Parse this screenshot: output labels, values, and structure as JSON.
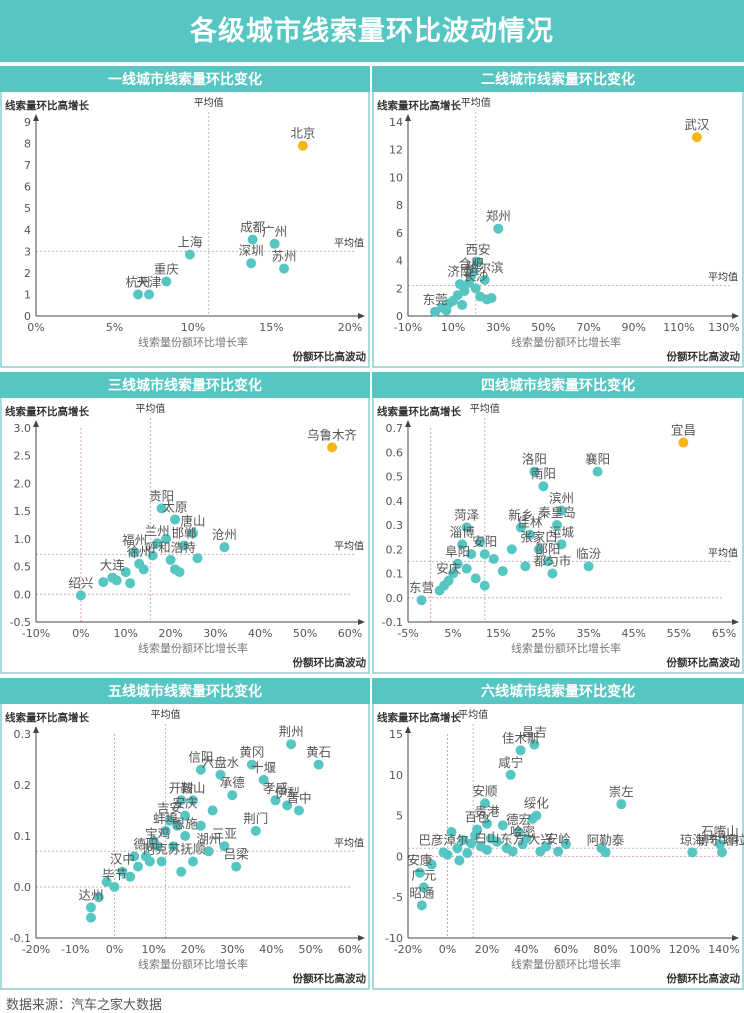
{
  "title": "各级城市线索量环比波动情况",
  "footer": "数据来源：汽车之家大数据",
  "colors": {
    "header": "#56c6c3",
    "point": "#56c6c3",
    "highlight": "#f5b51b",
    "frame": "#8ccfcd"
  },
  "chart_data": [
    {
      "type": "scatter",
      "title": "一线城市线索量环比变化",
      "ylabel": "线索量环比高增长",
      "xlabel": "线索量份额环比增长率",
      "corner_label": "份额环比高波动",
      "avg_label": "平均值",
      "x_format": "percent",
      "xlim": [
        0,
        0.2
      ],
      "xticks": [
        0,
        0.05,
        0.1,
        0.15,
        0.2
      ],
      "ylim": [
        0,
        9
      ],
      "yticks": [
        0,
        1,
        2,
        3,
        4,
        5,
        6,
        7,
        8,
        9
      ],
      "avg_x": 0.11,
      "avg_y": 3.0,
      "zero_lines": false,
      "points": [
        {
          "x": 0.17,
          "y": 7.9,
          "label": "北京",
          "highlight": true
        },
        {
          "x": 0.098,
          "y": 2.85,
          "label": "上海"
        },
        {
          "x": 0.138,
          "y": 3.55,
          "label": "成都"
        },
        {
          "x": 0.152,
          "y": 3.35,
          "label": "广州"
        },
        {
          "x": 0.137,
          "y": 2.45,
          "label": "深圳"
        },
        {
          "x": 0.158,
          "y": 2.2,
          "label": "苏州"
        },
        {
          "x": 0.083,
          "y": 1.6,
          "label": "重庆"
        },
        {
          "x": 0.065,
          "y": 1.0,
          "label": "杭州"
        },
        {
          "x": 0.072,
          "y": 1.0,
          "label": "天津"
        }
      ]
    },
    {
      "type": "scatter",
      "title": "二线城市线索量环比变化",
      "ylabel": "线索量环比高增长",
      "xlabel": "线索量份额环比增长率",
      "corner_label": "份额环比高波动",
      "avg_label": "平均值",
      "x_format": "percent",
      "xlim": [
        -0.1,
        1.3
      ],
      "xticks": [
        -0.1,
        0.1,
        0.3,
        0.5,
        0.7,
        0.9,
        1.1,
        1.3
      ],
      "ylim": [
        0,
        14
      ],
      "yticks": [
        0,
        2,
        4,
        6,
        8,
        10,
        12,
        14
      ],
      "avg_x": 0.2,
      "avg_y": 2.2,
      "zero_lines": false,
      "points": [
        {
          "x": 1.18,
          "y": 12.9,
          "label": "武汉",
          "highlight": true
        },
        {
          "x": 0.3,
          "y": 6.3,
          "label": "郑州"
        },
        {
          "x": 0.21,
          "y": 3.9,
          "label": "西安"
        },
        {
          "x": 0.18,
          "y": 2.9,
          "label": "合肥"
        },
        {
          "x": 0.24,
          "y": 2.6,
          "label": "哈尔滨"
        },
        {
          "x": 0.13,
          "y": 2.3,
          "label": "济南"
        },
        {
          "x": 0.2,
          "y": 2.0,
          "label": "长沙"
        },
        {
          "x": 0.02,
          "y": 0.3,
          "label": "东莞"
        },
        {
          "x": 0.05,
          "y": 0.6
        },
        {
          "x": 0.08,
          "y": 0.9
        },
        {
          "x": 0.1,
          "y": 1.1
        },
        {
          "x": 0.12,
          "y": 1.5
        },
        {
          "x": 0.15,
          "y": 1.8
        },
        {
          "x": 0.17,
          "y": 2.4
        },
        {
          "x": 0.19,
          "y": 3.2
        },
        {
          "x": 0.22,
          "y": 1.4
        },
        {
          "x": 0.25,
          "y": 1.2
        },
        {
          "x": 0.27,
          "y": 1.3
        },
        {
          "x": 0.14,
          "y": 0.8
        },
        {
          "x": 0.07,
          "y": 0.4
        }
      ]
    },
    {
      "type": "scatter",
      "title": "三线城市线索量环比变化",
      "ylabel": "线索量环比高增长",
      "xlabel": "线索量份额环比增长率",
      "corner_label": "份额环比高波动",
      "avg_label": "平均值",
      "x_format": "percent",
      "xlim": [
        -0.1,
        0.6
      ],
      "xticks": [
        -0.1,
        0,
        0.1,
        0.2,
        0.3,
        0.4,
        0.5,
        0.6
      ],
      "ylim": [
        -0.5,
        3.0
      ],
      "yticks": [
        -0.5,
        0,
        0.5,
        1.0,
        1.5,
        2.0,
        2.5,
        3.0
      ],
      "avg_x": 0.155,
      "avg_y": 0.72,
      "zero_lines": true,
      "points": [
        {
          "x": 0.56,
          "y": 2.65,
          "label": "乌鲁木齐",
          "highlight": true
        },
        {
          "x": 0.18,
          "y": 1.55,
          "label": "贵阳"
        },
        {
          "x": 0.21,
          "y": 1.35,
          "label": "太原"
        },
        {
          "x": 0.25,
          "y": 1.1,
          "label": "唐山"
        },
        {
          "x": 0.32,
          "y": 0.85,
          "label": "沧州"
        },
        {
          "x": 0.17,
          "y": 0.92,
          "label": "兰州"
        },
        {
          "x": 0.23,
          "y": 0.88,
          "label": "邯郸"
        },
        {
          "x": 0.12,
          "y": 0.75,
          "label": "福州"
        },
        {
          "x": 0.13,
          "y": 0.55,
          "label": "徐州"
        },
        {
          "x": 0.2,
          "y": 0.62,
          "label": "呼和浩特"
        },
        {
          "x": 0.07,
          "y": 0.3,
          "label": "大连"
        },
        {
          "x": 0.0,
          "y": -0.02,
          "label": "绍兴"
        },
        {
          "x": 0.05,
          "y": 0.22
        },
        {
          "x": 0.08,
          "y": 0.25
        },
        {
          "x": 0.1,
          "y": 0.4
        },
        {
          "x": 0.14,
          "y": 0.45
        },
        {
          "x": 0.16,
          "y": 0.7
        },
        {
          "x": 0.19,
          "y": 1.0
        },
        {
          "x": 0.21,
          "y": 0.45
        },
        {
          "x": 0.26,
          "y": 0.65
        },
        {
          "x": 0.22,
          "y": 0.4
        },
        {
          "x": 0.11,
          "y": 0.2
        }
      ]
    },
    {
      "type": "scatter",
      "title": "四线城市线索量环比变化",
      "ylabel": "线索量环比高增长",
      "xlabel": "线索量份额环比增长率",
      "corner_label": "份额环比高波动",
      "avg_label": "平均值",
      "x_format": "percent",
      "xlim": [
        -0.05,
        0.65
      ],
      "xticks": [
        -0.05,
        0.05,
        0.15,
        0.25,
        0.35,
        0.45,
        0.55,
        0.65
      ],
      "ylim": [
        -0.1,
        0.7
      ],
      "yticks": [
        -0.1,
        0,
        0.1,
        0.2,
        0.3,
        0.4,
        0.5,
        0.6,
        0.7
      ],
      "avg_x": 0.12,
      "avg_y": 0.15,
      "zero_lines": true,
      "points": [
        {
          "x": 0.56,
          "y": 0.64,
          "label": "宜昌",
          "highlight": true
        },
        {
          "x": 0.23,
          "y": 0.52,
          "label": "洛阳"
        },
        {
          "x": 0.37,
          "y": 0.52,
          "label": "襄阳"
        },
        {
          "x": 0.25,
          "y": 0.46,
          "label": "南阳"
        },
        {
          "x": 0.29,
          "y": 0.36,
          "label": "滨州"
        },
        {
          "x": 0.28,
          "y": 0.3,
          "label": "秦皇岛"
        },
        {
          "x": 0.2,
          "y": 0.29,
          "label": "新乡"
        },
        {
          "x": 0.08,
          "y": 0.29,
          "label": "菏泽"
        },
        {
          "x": 0.22,
          "y": 0.26,
          "label": "佳林"
        },
        {
          "x": 0.07,
          "y": 0.22,
          "label": "淄博"
        },
        {
          "x": 0.29,
          "y": 0.22,
          "label": "运城"
        },
        {
          "x": 0.24,
          "y": 0.2,
          "label": "张家口"
        },
        {
          "x": 0.12,
          "y": 0.18,
          "label": "安阳"
        },
        {
          "x": 0.35,
          "y": 0.13,
          "label": "临汾"
        },
        {
          "x": 0.26,
          "y": 0.15,
          "label": "邵阳"
        },
        {
          "x": 0.27,
          "y": 0.1,
          "label": "都匀市"
        },
        {
          "x": 0.06,
          "y": 0.14,
          "label": "阜阳"
        },
        {
          "x": 0.04,
          "y": 0.07,
          "label": "安庆"
        },
        {
          "x": -0.02,
          "y": -0.01,
          "label": "东营"
        },
        {
          "x": 0.02,
          "y": 0.03
        },
        {
          "x": 0.03,
          "y": 0.05
        },
        {
          "x": 0.05,
          "y": 0.1
        },
        {
          "x": 0.08,
          "y": 0.12
        },
        {
          "x": 0.1,
          "y": 0.08
        },
        {
          "x": 0.14,
          "y": 0.16
        },
        {
          "x": 0.18,
          "y": 0.2
        },
        {
          "x": 0.21,
          "y": 0.13
        },
        {
          "x": 0.09,
          "y": 0.18
        },
        {
          "x": 0.11,
          "y": 0.23
        },
        {
          "x": 0.16,
          "y": 0.11
        },
        {
          "x": 0.12,
          "y": 0.05
        }
      ]
    },
    {
      "type": "scatter",
      "title": "五线城市线索量环比变化",
      "ylabel": "线索量环比高增长",
      "xlabel": "线索量份额环比增长率",
      "corner_label": "份额环比高波动",
      "avg_label": "平均值",
      "x_format": "percent",
      "xlim": [
        -0.2,
        0.6
      ],
      "xticks": [
        -0.2,
        -0.1,
        0,
        0.1,
        0.2,
        0.3,
        0.4,
        0.5,
        0.6
      ],
      "ylim": [
        -0.1,
        0.3
      ],
      "yticks": [
        -0.1,
        0,
        0.1,
        0.2,
        0.3
      ],
      "avg_x": 0.13,
      "avg_y": 0.07,
      "zero_lines": true,
      "points": [
        {
          "x": 0.45,
          "y": 0.28,
          "label": "荆州"
        },
        {
          "x": 0.52,
          "y": 0.24,
          "label": "黄石"
        },
        {
          "x": 0.35,
          "y": 0.24,
          "label": "黄冈"
        },
        {
          "x": 0.22,
          "y": 0.23,
          "label": "信阳"
        },
        {
          "x": 0.38,
          "y": 0.21,
          "label": "十堰"
        },
        {
          "x": 0.27,
          "y": 0.22,
          "label": "六盘水"
        },
        {
          "x": 0.3,
          "y": 0.18,
          "label": "承德"
        },
        {
          "x": 0.41,
          "y": 0.17,
          "label": "孝感"
        },
        {
          "x": 0.44,
          "y": 0.16,
          "label": "伊犁"
        },
        {
          "x": 0.47,
          "y": 0.15,
          "label": "晋中"
        },
        {
          "x": 0.2,
          "y": 0.17,
          "label": "鞍山"
        },
        {
          "x": 0.17,
          "y": 0.17,
          "label": "开封"
        },
        {
          "x": 0.18,
          "y": 0.14,
          "label": "安庆"
        },
        {
          "x": 0.14,
          "y": 0.13,
          "label": "吉安"
        },
        {
          "x": 0.36,
          "y": 0.11,
          "label": "荆门"
        },
        {
          "x": 0.13,
          "y": 0.11,
          "label": "蚌埠"
        },
        {
          "x": 0.18,
          "y": 0.1,
          "label": "恩施"
        },
        {
          "x": 0.28,
          "y": 0.08,
          "label": "三亚"
        },
        {
          "x": 0.24,
          "y": 0.07,
          "label": "湖州"
        },
        {
          "x": 0.11,
          "y": 0.08,
          "label": "宝鸡"
        },
        {
          "x": 0.08,
          "y": 0.06,
          "label": "德阳"
        },
        {
          "x": 0.12,
          "y": 0.05,
          "label": "阿克苏"
        },
        {
          "x": 0.2,
          "y": 0.05,
          "label": "抚顺"
        },
        {
          "x": 0.31,
          "y": 0.04,
          "label": "吕梁"
        },
        {
          "x": 0.02,
          "y": 0.03,
          "label": "汉中"
        },
        {
          "x": 0.0,
          "y": 0.0,
          "label": "毕节"
        },
        {
          "x": -0.06,
          "y": -0.04,
          "label": "达州"
        },
        {
          "x": -0.06,
          "y": -0.06
        },
        {
          "x": -0.04,
          "y": -0.02
        },
        {
          "x": -0.02,
          "y": 0.01
        },
        {
          "x": 0.04,
          "y": 0.02
        },
        {
          "x": 0.06,
          "y": 0.04
        },
        {
          "x": 0.09,
          "y": 0.05
        },
        {
          "x": 0.1,
          "y": 0.09
        },
        {
          "x": 0.15,
          "y": 0.08
        },
        {
          "x": 0.16,
          "y": 0.12
        },
        {
          "x": 0.17,
          "y": 0.03
        },
        {
          "x": 0.22,
          "y": 0.12
        },
        {
          "x": 0.25,
          "y": 0.15
        },
        {
          "x": 0.05,
          "y": 0.06
        }
      ]
    },
    {
      "type": "scatter",
      "title": "六线城市线索量环比变化",
      "ylabel": "线索量环比高增长",
      "xlabel": "线索量份额环比增长率",
      "corner_label": "份额环比高波动",
      "avg_label": "平均值",
      "x_format": "percent",
      "xlim": [
        -0.2,
        1.4
      ],
      "xticks": [
        -0.2,
        0,
        0.2,
        0.4,
        0.6,
        0.8,
        1.0,
        1.2,
        1.4
      ],
      "ylim": [
        -10,
        15
      ],
      "yticks": [
        -10,
        -5,
        0,
        5,
        10,
        15
      ],
      "avg_x": 0.13,
      "avg_y": 1.0,
      "zero_lines": true,
      "points": [
        {
          "x": 0.44,
          "y": 13.7,
          "label": "昌吉"
        },
        {
          "x": 0.37,
          "y": 13.0,
          "label": "佳木斯"
        },
        {
          "x": 0.32,
          "y": 10.0,
          "label": "咸宁"
        },
        {
          "x": 0.88,
          "y": 6.4,
          "label": "崇左"
        },
        {
          "x": 1.38,
          "y": 1.5,
          "label": "石嘴山"
        },
        {
          "x": 0.19,
          "y": 6.5,
          "label": "安顺"
        },
        {
          "x": 0.45,
          "y": 5.0,
          "label": "绥化"
        },
        {
          "x": 0.2,
          "y": 4.0,
          "label": "贵港"
        },
        {
          "x": 0.15,
          "y": 3.3,
          "label": "百色"
        },
        {
          "x": 0.36,
          "y": 3.0,
          "label": "德宏"
        },
        {
          "x": 0.38,
          "y": 1.5,
          "label": "哈密"
        },
        {
          "x": 1.24,
          "y": 0.5,
          "label": "琼海"
        },
        {
          "x": 1.39,
          "y": 0.5,
          "label": "博尔塔拉"
        },
        {
          "x": 0.8,
          "y": 0.5,
          "label": "阿勒泰"
        },
        {
          "x": 0.56,
          "y": 0.6,
          "label": "安岭"
        },
        {
          "x": 0.47,
          "y": 0.6,
          "label": "大兴"
        },
        {
          "x": 0.33,
          "y": 0.6,
          "label": "东方"
        },
        {
          "x": 0.2,
          "y": 0.8,
          "label": "白山"
        },
        {
          "x": -0.02,
          "y": 0.5,
          "label": "巴彦淖尔"
        },
        {
          "x": -0.14,
          "y": -2.0,
          "label": "安康"
        },
        {
          "x": -0.12,
          "y": -3.8,
          "label": "广元"
        },
        {
          "x": -0.13,
          "y": -6.0,
          "label": "昭通"
        },
        {
          "x": -0.08,
          "y": -1.0
        },
        {
          "x": 0.0,
          "y": 0.2
        },
        {
          "x": 0.05,
          "y": 1.0
        },
        {
          "x": 0.08,
          "y": 2.0
        },
        {
          "x": 0.1,
          "y": 0.4
        },
        {
          "x": 0.12,
          "y": 1.6
        },
        {
          "x": 0.14,
          "y": 2.6
        },
        {
          "x": 0.17,
          "y": 1.2
        },
        {
          "x": 0.22,
          "y": 2.2
        },
        {
          "x": 0.25,
          "y": 1.8
        },
        {
          "x": 0.28,
          "y": 3.8
        },
        {
          "x": 0.3,
          "y": 1.0
        },
        {
          "x": 0.4,
          "y": 2.2
        },
        {
          "x": 0.43,
          "y": 4.6
        },
        {
          "x": 0.5,
          "y": 1.2
        },
        {
          "x": 0.6,
          "y": 1.5
        },
        {
          "x": 0.78,
          "y": 1.0
        },
        {
          "x": 0.02,
          "y": 3.0
        },
        {
          "x": 0.06,
          "y": -0.5
        }
      ]
    }
  ]
}
